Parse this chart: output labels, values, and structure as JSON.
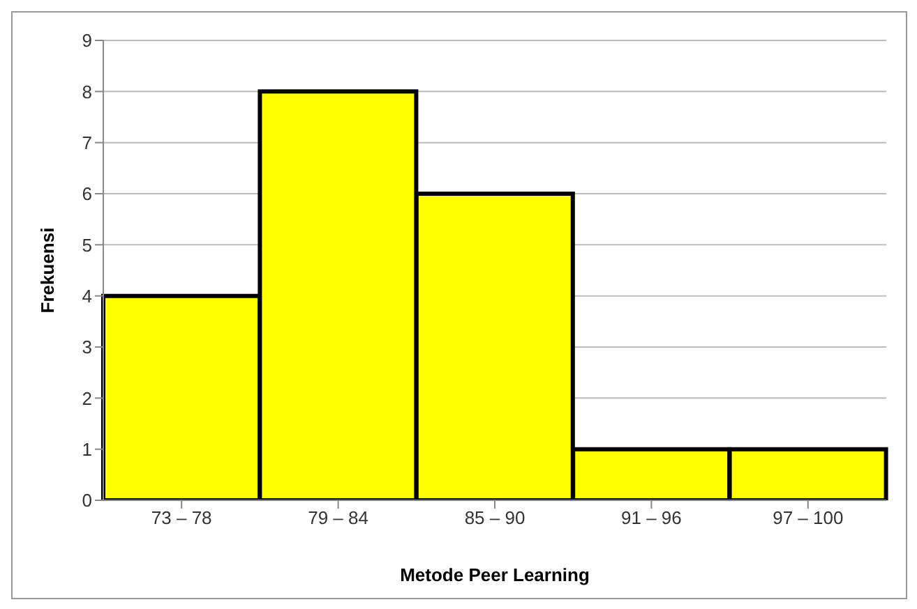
{
  "chart_data": {
    "type": "bar",
    "xlabel": "Metode Peer Learning",
    "ylabel": "Frekuensi",
    "categories": [
      "73 – 78",
      "79 – 84",
      "85 – 90",
      "91 – 96",
      "97 – 100"
    ],
    "values": [
      4,
      8,
      6,
      1,
      1
    ],
    "color": "#ffff00",
    "ylim": [
      0,
      9
    ],
    "yticks": [
      0,
      1,
      2,
      3,
      4,
      5,
      6,
      7,
      8,
      9
    ],
    "grid": "y"
  }
}
